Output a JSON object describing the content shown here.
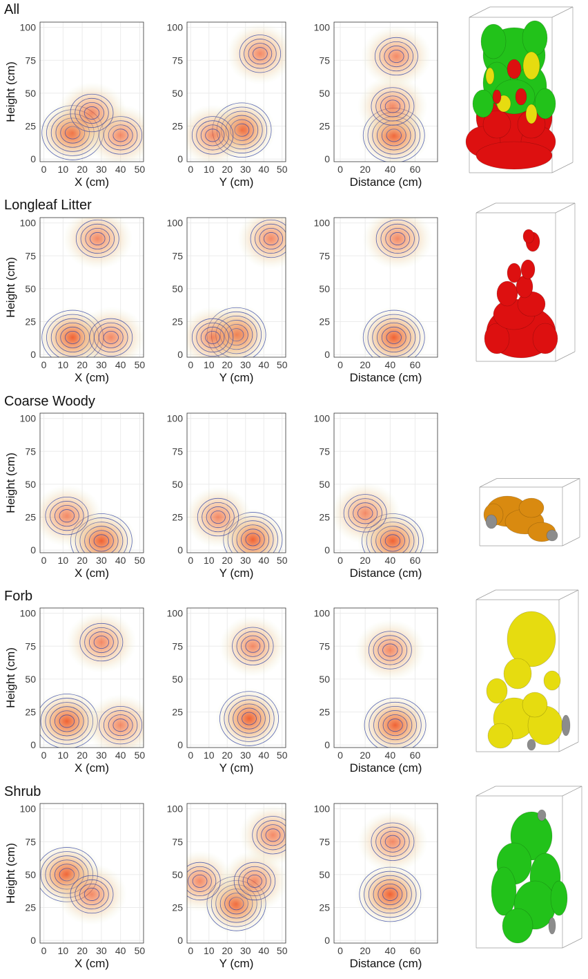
{
  "colors": {
    "density_high": "#ef5a2a",
    "density_mid": "#f4b27a",
    "density_low": "#e4edc8",
    "contour": "#3a4aa6",
    "grid": "#ebebeb",
    "panel_border": "#333333",
    "shrub_green": "#22c21a",
    "litter_red": "#dd1010",
    "forb_yellow": "#e6dc10",
    "woody_orange": "#d98a10",
    "gray": "#8c8c8c"
  },
  "chart_data": [
    {
      "type": "heatmap",
      "title": "All",
      "legend": "none",
      "grid": true,
      "panels": [
        {
          "xlabel": "X (cm)",
          "ylabel": "Height (cm)",
          "xlim": [
            -2,
            52
          ],
          "ylim": [
            -2,
            104
          ],
          "xticks": [
            "0",
            "10",
            "20",
            "30",
            "40",
            "50"
          ],
          "xtick_values": [
            0,
            10,
            20,
            30,
            40,
            50
          ],
          "yticks": [
            "0",
            "25",
            "50",
            "75",
            "100"
          ],
          "ytick_values": [
            0,
            25,
            50,
            75,
            100
          ],
          "peaks": [
            {
              "x": 15,
              "y": 20
            },
            {
              "x": 40,
              "y": 18
            },
            {
              "x": 25,
              "y": 35
            }
          ]
        },
        {
          "xlabel": "Y (cm)",
          "ylabel": "",
          "xlim": [
            -2,
            52
          ],
          "ylim": [
            -2,
            104
          ],
          "xticks": [
            "0",
            "10",
            "20",
            "30",
            "40",
            "50"
          ],
          "xtick_values": [
            0,
            10,
            20,
            30,
            40,
            50
          ],
          "yticks": [
            "0",
            "25",
            "50",
            "75",
            "100"
          ],
          "ytick_values": [
            0,
            25,
            50,
            75,
            100
          ],
          "peaks": [
            {
              "x": 28,
              "y": 22
            },
            {
              "x": 12,
              "y": 18
            },
            {
              "x": 38,
              "y": 80
            }
          ]
        },
        {
          "xlabel": "Distance (cm)",
          "ylabel": "",
          "xlim": [
            -5,
            78
          ],
          "ylim": [
            -2,
            104
          ],
          "xticks": [
            "0",
            "20",
            "40",
            "60"
          ],
          "xtick_values": [
            0,
            20,
            40,
            60
          ],
          "yticks": [
            "0",
            "25",
            "50",
            "75",
            "100"
          ],
          "ytick_values": [
            0,
            25,
            50,
            75,
            100
          ],
          "peaks": [
            {
              "x": 43,
              "y": 18
            },
            {
              "x": 42,
              "y": 40
            },
            {
              "x": 45,
              "y": 78
            }
          ]
        }
      ]
    },
    {
      "type": "heatmap",
      "title": "Longleaf Litter",
      "legend": "none",
      "grid": true,
      "panels": [
        {
          "xlabel": "X (cm)",
          "ylabel": "Height (cm)",
          "xlim": [
            -2,
            52
          ],
          "ylim": [
            -2,
            104
          ],
          "xticks": [
            "0",
            "10",
            "20",
            "30",
            "40",
            "50"
          ],
          "xtick_values": [
            0,
            10,
            20,
            30,
            40,
            50
          ],
          "yticks": [
            "0",
            "25",
            "50",
            "75",
            "100"
          ],
          "ytick_values": [
            0,
            25,
            50,
            75,
            100
          ],
          "peaks": [
            {
              "x": 15,
              "y": 13
            },
            {
              "x": 35,
              "y": 13
            },
            {
              "x": 28,
              "y": 88
            }
          ]
        },
        {
          "xlabel": "Y (cm)",
          "ylabel": "",
          "xlim": [
            -2,
            52
          ],
          "ylim": [
            -2,
            104
          ],
          "xticks": [
            "0",
            "10",
            "20",
            "30",
            "40",
            "50"
          ],
          "xtick_values": [
            0,
            10,
            20,
            30,
            40,
            50
          ],
          "yticks": [
            "0",
            "25",
            "50",
            "75",
            "100"
          ],
          "ytick_values": [
            0,
            25,
            50,
            75,
            100
          ],
          "peaks": [
            {
              "x": 25,
              "y": 15
            },
            {
              "x": 12,
              "y": 13
            },
            {
              "x": 44,
              "y": 88
            }
          ]
        },
        {
          "xlabel": "Distance (cm)",
          "ylabel": "",
          "xlim": [
            -5,
            78
          ],
          "ylim": [
            -2,
            104
          ],
          "xticks": [
            "0",
            "20",
            "40",
            "60"
          ],
          "xtick_values": [
            0,
            20,
            40,
            60
          ],
          "yticks": [
            "0",
            "25",
            "50",
            "75",
            "100"
          ],
          "ytick_values": [
            0,
            25,
            50,
            75,
            100
          ],
          "peaks": [
            {
              "x": 43,
              "y": 13
            },
            {
              "x": 46,
              "y": 88
            }
          ]
        }
      ]
    },
    {
      "type": "heatmap",
      "title": "Coarse Woody",
      "legend": "none",
      "grid": true,
      "panels": [
        {
          "xlabel": "X (cm)",
          "ylabel": "Height (cm)",
          "xlim": [
            -2,
            52
          ],
          "ylim": [
            -2,
            104
          ],
          "xticks": [
            "0",
            "10",
            "20",
            "30",
            "40",
            "50"
          ],
          "xtick_values": [
            0,
            10,
            20,
            30,
            40,
            50
          ],
          "yticks": [
            "0",
            "25",
            "50",
            "75",
            "100"
          ],
          "ytick_values": [
            0,
            25,
            50,
            75,
            100
          ],
          "peaks": [
            {
              "x": 30,
              "y": 7
            },
            {
              "x": 12,
              "y": 26
            }
          ]
        },
        {
          "xlabel": "Y (cm)",
          "ylabel": "",
          "xlim": [
            -2,
            52
          ],
          "ylim": [
            -2,
            104
          ],
          "xticks": [
            "0",
            "10",
            "20",
            "30",
            "40",
            "50"
          ],
          "xtick_values": [
            0,
            10,
            20,
            30,
            40,
            50
          ],
          "yticks": [
            "0",
            "25",
            "50",
            "75",
            "100"
          ],
          "ytick_values": [
            0,
            25,
            50,
            75,
            100
          ],
          "peaks": [
            {
              "x": 34,
              "y": 8
            },
            {
              "x": 15,
              "y": 25
            }
          ]
        },
        {
          "xlabel": "Distance (cm)",
          "ylabel": "",
          "xlim": [
            -5,
            78
          ],
          "ylim": [
            -2,
            104
          ],
          "xticks": [
            "0",
            "20",
            "40",
            "60"
          ],
          "xtick_values": [
            0,
            20,
            40,
            60
          ],
          "yticks": [
            "0",
            "25",
            "50",
            "75",
            "100"
          ],
          "ytick_values": [
            0,
            25,
            50,
            75,
            100
          ],
          "peaks": [
            {
              "x": 42,
              "y": 7
            },
            {
              "x": 20,
              "y": 28
            }
          ]
        }
      ]
    },
    {
      "type": "heatmap",
      "title": "Forb",
      "legend": "none",
      "grid": true,
      "panels": [
        {
          "xlabel": "X (cm)",
          "ylabel": "Height (cm)",
          "xlim": [
            -2,
            52
          ],
          "ylim": [
            -2,
            104
          ],
          "xticks": [
            "0",
            "10",
            "20",
            "30",
            "40",
            "50"
          ],
          "xtick_values": [
            0,
            10,
            20,
            30,
            40,
            50
          ],
          "yticks": [
            "0",
            "25",
            "50",
            "75",
            "100"
          ],
          "ytick_values": [
            0,
            25,
            50,
            75,
            100
          ],
          "peaks": [
            {
              "x": 12,
              "y": 18
            },
            {
              "x": 40,
              "y": 15
            },
            {
              "x": 30,
              "y": 78
            }
          ]
        },
        {
          "xlabel": "Y (cm)",
          "ylabel": "",
          "xlim": [
            -2,
            52
          ],
          "ylim": [
            -2,
            104
          ],
          "xticks": [
            "0",
            "10",
            "20",
            "30",
            "40",
            "50"
          ],
          "xtick_values": [
            0,
            10,
            20,
            30,
            40,
            50
          ],
          "yticks": [
            "0",
            "25",
            "50",
            "75",
            "100"
          ],
          "ytick_values": [
            0,
            25,
            50,
            75,
            100
          ],
          "peaks": [
            {
              "x": 32,
              "y": 20
            },
            {
              "x": 34,
              "y": 75
            }
          ]
        },
        {
          "xlabel": "Distance (cm)",
          "ylabel": "",
          "xlim": [
            -5,
            78
          ],
          "ylim": [
            -2,
            104
          ],
          "xticks": [
            "0",
            "20",
            "40",
            "60"
          ],
          "xtick_values": [
            0,
            20,
            40,
            60
          ],
          "yticks": [
            "0",
            "25",
            "50",
            "75",
            "100"
          ],
          "ytick_values": [
            0,
            25,
            50,
            75,
            100
          ],
          "peaks": [
            {
              "x": 44,
              "y": 15
            },
            {
              "x": 40,
              "y": 72
            }
          ]
        }
      ]
    },
    {
      "type": "heatmap",
      "title": "Shrub",
      "legend": "none",
      "grid": true,
      "panels": [
        {
          "xlabel": "X (cm)",
          "ylabel": "Height (cm)",
          "xlim": [
            -2,
            52
          ],
          "ylim": [
            -2,
            104
          ],
          "xticks": [
            "0",
            "10",
            "20",
            "30",
            "40",
            "50"
          ],
          "xtick_values": [
            0,
            10,
            20,
            30,
            40,
            50
          ],
          "yticks": [
            "0",
            "25",
            "50",
            "75",
            "100"
          ],
          "ytick_values": [
            0,
            25,
            50,
            75,
            100
          ],
          "peaks": [
            {
              "x": 12,
              "y": 50
            },
            {
              "x": 25,
              "y": 35
            }
          ]
        },
        {
          "xlabel": "Y (cm)",
          "ylabel": "",
          "xlim": [
            -2,
            52
          ],
          "ylim": [
            -2,
            104
          ],
          "xticks": [
            "0",
            "10",
            "20",
            "30",
            "40",
            "50"
          ],
          "xtick_values": [
            0,
            10,
            20,
            30,
            40,
            50
          ],
          "yticks": [
            "0",
            "25",
            "50",
            "75",
            "100"
          ],
          "ytick_values": [
            0,
            25,
            50,
            75,
            100
          ],
          "peaks": [
            {
              "x": 25,
              "y": 28
            },
            {
              "x": 35,
              "y": 45
            },
            {
              "x": 5,
              "y": 45
            },
            {
              "x": 45,
              "y": 80
            }
          ]
        },
        {
          "xlabel": "Distance (cm)",
          "ylabel": "",
          "xlim": [
            -5,
            78
          ],
          "ylim": [
            -2,
            104
          ],
          "xticks": [
            "0",
            "20",
            "40",
            "60"
          ],
          "xtick_values": [
            0,
            20,
            40,
            60
          ],
          "yticks": [
            "0",
            "25",
            "50",
            "75",
            "100"
          ],
          "ytick_values": [
            0,
            25,
            50,
            75,
            100
          ],
          "peaks": [
            {
              "x": 40,
              "y": 35
            },
            {
              "x": 42,
              "y": 75
            }
          ]
        }
      ]
    }
  ],
  "renders_3d": [
    {
      "row": 0,
      "name": "all-3d-render",
      "colors": [
        "#22c21a",
        "#dd1010",
        "#e6dc10"
      ]
    },
    {
      "row": 1,
      "name": "longleaf-litter-3d-render",
      "colors": [
        "#dd1010"
      ]
    },
    {
      "row": 2,
      "name": "coarse-woody-3d-render",
      "colors": [
        "#d98a10"
      ]
    },
    {
      "row": 3,
      "name": "forb-3d-render",
      "colors": [
        "#e6dc10"
      ]
    },
    {
      "row": 4,
      "name": "shrub-3d-render",
      "colors": [
        "#22c21a"
      ]
    }
  ]
}
